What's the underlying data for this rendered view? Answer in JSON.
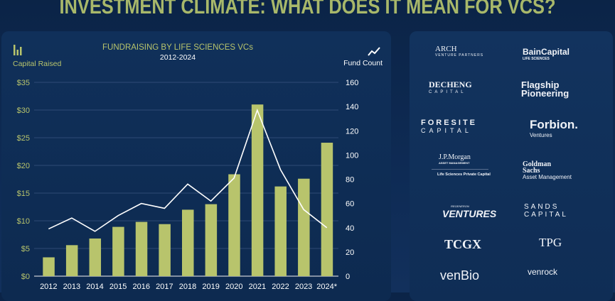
{
  "page_title": "INVESTMENT CLIMATE: WHAT DOES IT MEAN FOR VCS?",
  "colors": {
    "bar": "#b8c46c",
    "line": "#ffffff",
    "title": "#a8b86a",
    "background": "#0e2b55"
  },
  "chart_data": {
    "type": "bar+line",
    "title": "FUNDRAISING BY LIFE SCIENCES VCs",
    "subtitle": "2012-2024",
    "categories": [
      "2012",
      "2013",
      "2014",
      "2015",
      "2016",
      "2017",
      "2018",
      "2019",
      "2020",
      "2021",
      "2022",
      "2023",
      "2024*"
    ],
    "series": [
      {
        "name": "Capital Raised",
        "type": "bar",
        "axis": "left",
        "icon": "bar-chart-icon",
        "values": [
          3.4,
          5.6,
          6.8,
          8.9,
          9.8,
          9.4,
          12.0,
          13.0,
          18.4,
          31.0,
          16.2,
          17.6,
          24.1
        ]
      },
      {
        "name": "Fund Count",
        "type": "line",
        "axis": "right",
        "icon": "line-chart-icon",
        "values": [
          39,
          48,
          37,
          50,
          60,
          56,
          76,
          62,
          81,
          137,
          88,
          55,
          40
        ]
      }
    ],
    "y_left": {
      "range": [
        0,
        35
      ],
      "ticks": [
        "$0",
        "$5",
        "$10",
        "$15",
        "$20",
        "$25",
        "$30",
        "$35"
      ],
      "tick_values": [
        0,
        5,
        10,
        15,
        20,
        25,
        30,
        35
      ]
    },
    "y_right": {
      "range": [
        0,
        160
      ],
      "ticks": [
        "0",
        "20",
        "40",
        "60",
        "80",
        "100",
        "120",
        "140",
        "160"
      ],
      "tick_values": [
        0,
        20,
        40,
        60,
        80,
        100,
        120,
        140,
        160
      ]
    },
    "grid": true
  },
  "logos": [
    {
      "name": "ARCH",
      "sub": "VENTURE PARTNERS"
    },
    {
      "name": "BainCapital",
      "sub": "LIFE SCIENCES"
    },
    {
      "name": "DECHENG",
      "sub": "CAPITAL"
    },
    {
      "name": "Flagship",
      "sub": "Pioneering"
    },
    {
      "name": "FORESITE",
      "sub": "CAPITAL"
    },
    {
      "name": "Forbion.",
      "sub": "Ventures"
    },
    {
      "name": "J.P.Morgan",
      "sub": "ASSET MANAGEMENT",
      "extra": "Life Sciences Private Capital"
    },
    {
      "name": "Goldman Sachs",
      "sub": "Asset Management"
    },
    {
      "name": "VENTURES",
      "sub": "REGENERON"
    },
    {
      "name": "SANDS",
      "sub": "CAPITAL"
    },
    {
      "name": "TCGX",
      "sub": ""
    },
    {
      "name": "TPG",
      "sub": ""
    },
    {
      "name": "venBio",
      "sub": ""
    },
    {
      "name": "venrock",
      "sub": ""
    }
  ]
}
